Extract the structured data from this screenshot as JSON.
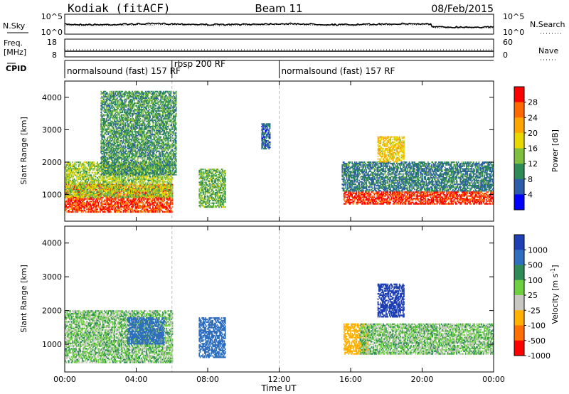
{
  "header": {
    "station": "Kodiak (fitACF)",
    "beam": "Beam 11",
    "date": "08/Feb/2015"
  },
  "summary_panels": {
    "nsky_label": "N.Sky",
    "nsearch_label": "N.Search",
    "freq_label_line1": "Freq.",
    "freq_label_line2": "[MHz]",
    "nave_label": "Nave",
    "cpid_label": "CPID",
    "noise_ticks_left": [
      "10^5",
      "10^0"
    ],
    "noise_ticks_right": [
      "10^5",
      "10^0"
    ],
    "freq_ticks": [
      "18",
      "8"
    ],
    "nave_ticks": [
      "60",
      "0"
    ]
  },
  "cpid_segments": [
    {
      "label": "normalsound (fast) 157 RF",
      "start_hr": 0,
      "end_hr": 6
    },
    {
      "label": "rbsp 200 RF",
      "start_hr": 6,
      "end_hr": 12
    },
    {
      "label": "normalsound (fast) 157 RF",
      "start_hr": 12,
      "end_hr": 24
    }
  ],
  "axes": {
    "xlabel": "Time UT",
    "ylabel": "Slant Range [km]",
    "x_ticks": [
      "00:00",
      "04:00",
      "08:00",
      "12:00",
      "16:00",
      "20:00",
      "00:00"
    ],
    "x_range_hr": [
      0,
      24
    ],
    "y_ticks": [
      "1000",
      "2000",
      "3000",
      "4000"
    ],
    "y_range_km": [
      180,
      4500
    ]
  },
  "colorbars": {
    "power": {
      "label": "Power [dB]",
      "ticks": [
        "4",
        "8",
        "12",
        "16",
        "20",
        "24",
        "28"
      ],
      "colors": [
        "#0000ff",
        "#2d5da8",
        "#2e8b57",
        "#7fbf3f",
        "#e8d800",
        "#ffa500",
        "#ff6a00",
        "#ff0000"
      ]
    },
    "velocity": {
      "label": "Velocity [m s^-1]",
      "ticks": [
        "1000",
        "500",
        "100",
        "25",
        "-25",
        "-100",
        "-500",
        "-1000"
      ],
      "colors": [
        "#1e3fb4",
        "#2f6fbf",
        "#2e8b57",
        "#6ed040",
        "#c8c8c0",
        "#ffb000",
        "#ff7000",
        "#ff0000"
      ]
    }
  },
  "chart_data": [
    {
      "type": "heatmap",
      "title": "",
      "xlabel": "Time UT",
      "ylabel": "Slant Range [km]",
      "zlabel": "Power [dB]",
      "xlim": [
        0,
        24
      ],
      "ylim": [
        180,
        4500
      ],
      "zlim": [
        0,
        30
      ],
      "regions": [
        {
          "t": [
            0.0,
            6.0
          ],
          "range_km": [
            450,
            1300
          ],
          "value": 26
        },
        {
          "t": [
            0.0,
            6.0
          ],
          "range_km": [
            900,
            2000
          ],
          "value": 14
        },
        {
          "t": [
            2.0,
            6.2
          ],
          "range_km": [
            1600,
            4200
          ],
          "value": 10
        },
        {
          "t": [
            7.5,
            9.0
          ],
          "range_km": [
            600,
            1800
          ],
          "value": 12
        },
        {
          "t": [
            11.0,
            11.5
          ],
          "range_km": [
            2400,
            3200
          ],
          "value": 6
        },
        {
          "t": [
            15.6,
            24.0
          ],
          "range_km": [
            700,
            1100
          ],
          "value": 27
        },
        {
          "t": [
            15.5,
            24.0
          ],
          "range_km": [
            1100,
            2000
          ],
          "value": 8
        },
        {
          "t": [
            17.5,
            19.0
          ],
          "range_km": [
            2000,
            2800
          ],
          "value": 18
        }
      ]
    },
    {
      "type": "heatmap",
      "title": "",
      "xlabel": "Time UT",
      "ylabel": "Slant Range [km]",
      "zlabel": "Velocity [m s^-1]",
      "xlim": [
        0,
        24
      ],
      "ylim": [
        180,
        4500
      ],
      "zlim": [
        -1000,
        1000
      ],
      "regions": [
        {
          "t": [
            0.0,
            6.0
          ],
          "range_km": [
            450,
            2000
          ],
          "value": 0
        },
        {
          "t": [
            3.5,
            5.5
          ],
          "range_km": [
            1000,
            1800
          ],
          "value": 300
        },
        {
          "t": [
            7.5,
            9.0
          ],
          "range_km": [
            600,
            1800
          ],
          "value": 400
        },
        {
          "t": [
            15.6,
            17.0
          ],
          "range_km": [
            700,
            1600
          ],
          "value": -400
        },
        {
          "t": [
            16.5,
            24.0
          ],
          "range_km": [
            700,
            1600
          ],
          "value": 0
        },
        {
          "t": [
            17.5,
            19.0
          ],
          "range_km": [
            1800,
            2800
          ],
          "value": 600
        }
      ]
    }
  ]
}
